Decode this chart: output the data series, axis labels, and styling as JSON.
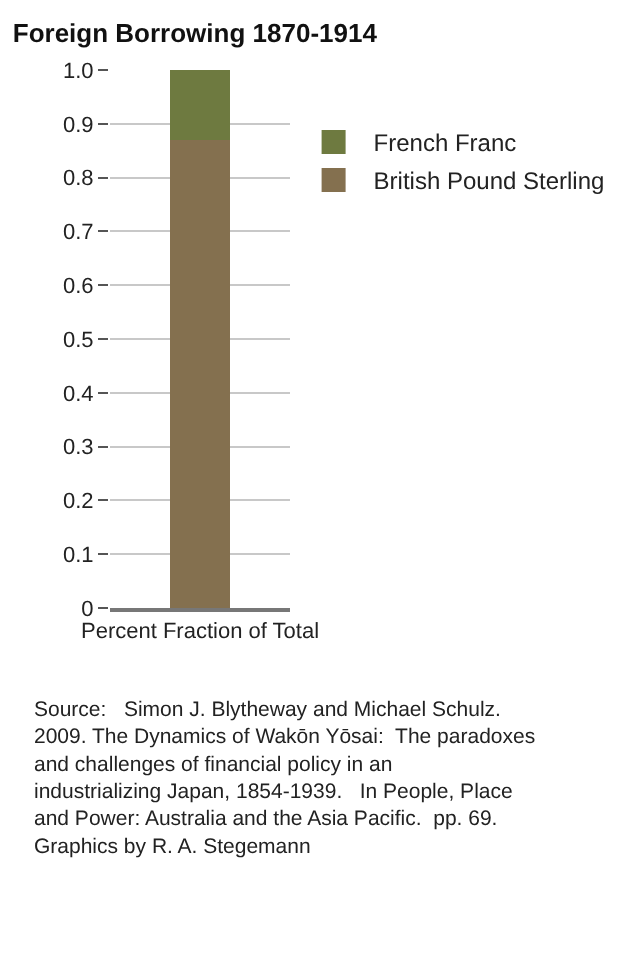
{
  "chart_data": {
    "type": "bar",
    "title": "Foreign Borrowing 1870-1914",
    "stacked": true,
    "categories": [
      "Percent Fraction of Total"
    ],
    "series": [
      {
        "name": "British Pound Sterling",
        "color": "#84704f",
        "values": [
          0.87
        ]
      },
      {
        "name": "French Franc",
        "color": "#6e7a40",
        "values": [
          0.13
        ]
      }
    ],
    "ylim": [
      0,
      1.0
    ],
    "yticks": [
      0,
      0.1,
      0.2,
      0.3,
      0.4,
      0.5,
      0.6,
      0.7,
      0.8,
      0.9,
      {
        "value": 1.0,
        "label": "1.0"
      }
    ],
    "grid": "y",
    "legend": "right",
    "annotations": [
      "Source:   Simon J. Blytheway and Michael Schulz. 2009. The Dynamics of Wakōn Yōsai:  The paradoxes and challenges of financial policy in an industrializing Japan, 1854-1939.   In People, Place and Power: Australia and the Asia Pacific.  pp. 69.  Graphics by R. A. Stegemann"
    ]
  }
}
